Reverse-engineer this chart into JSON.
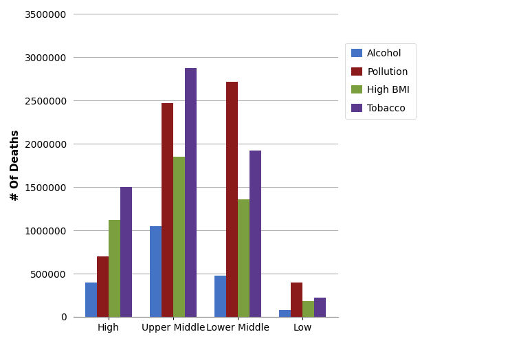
{
  "categories": [
    "High",
    "Upper Middle",
    "Lower Middle",
    "Low"
  ],
  "series": {
    "Alcohol": [
      400000,
      1050000,
      475000,
      80000
    ],
    "Pollution": [
      700000,
      2470000,
      2720000,
      400000
    ],
    "High BMI": [
      1120000,
      1850000,
      1360000,
      185000
    ],
    "Tobacco": [
      1500000,
      2880000,
      1920000,
      220000
    ]
  },
  "colors": {
    "Alcohol": "#4472C4",
    "Pollution": "#8B1A1A",
    "High BMI": "#7B9E3E",
    "Tobacco": "#5B3A8E"
  },
  "ylabel": "# Of Deaths",
  "ylim": [
    0,
    3500000
  ],
  "yticks": [
    0,
    500000,
    1000000,
    1500000,
    2000000,
    2500000,
    3000000,
    3500000
  ],
  "bar_width": 0.18,
  "background_color": "#ffffff",
  "plot_bg_color": "#ffffff",
  "grid_color": "#b0b0b0",
  "legend_labels": [
    "Alcohol",
    "Pollution",
    "High BMI",
    "Tobacco"
  ]
}
